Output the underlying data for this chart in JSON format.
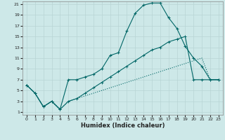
{
  "xlabel": "Humidex (Indice chaleur)",
  "bg_color": "#cde8e8",
  "grid_color": "#b8d4d4",
  "line_color": "#006666",
  "xlim": [
    -0.5,
    23.5
  ],
  "ylim": [
    0.5,
    21.5
  ],
  "xticks": [
    0,
    1,
    2,
    3,
    4,
    5,
    6,
    7,
    8,
    9,
    10,
    11,
    12,
    13,
    14,
    15,
    16,
    17,
    18,
    19,
    20,
    21,
    22,
    23
  ],
  "yticks": [
    1,
    3,
    5,
    7,
    9,
    11,
    13,
    15,
    17,
    19,
    21
  ],
  "line1_x": [
    0,
    1,
    2,
    3,
    4,
    5,
    6,
    7,
    8,
    9,
    10,
    11,
    12,
    13,
    14,
    15,
    16,
    17,
    18,
    19,
    20,
    21,
    22,
    23
  ],
  "line1_y": [
    6,
    4.5,
    2,
    3,
    1.5,
    7,
    7,
    7.5,
    8,
    9,
    11.5,
    12,
    16,
    19.3,
    20.8,
    21.2,
    21.2,
    18.5,
    16.5,
    13.2,
    11,
    9.5,
    7,
    7
  ],
  "line2_x": [
    0,
    1,
    2,
    3,
    4,
    5,
    6,
    7,
    8,
    9,
    10,
    11,
    12,
    13,
    14,
    15,
    16,
    17,
    18,
    19,
    20,
    21,
    22,
    23
  ],
  "line2_y": [
    6,
    4.5,
    2,
    3,
    1.5,
    3.0,
    3.5,
    4.5,
    5.5,
    6.5,
    7.5,
    8.5,
    9.5,
    10.5,
    11.5,
    12.5,
    13.0,
    14.0,
    14.5,
    15.0,
    7,
    7,
    7,
    7
  ],
  "line3_x": [
    0,
    1,
    2,
    3,
    4,
    5,
    6,
    7,
    8,
    9,
    10,
    11,
    12,
    13,
    14,
    15,
    16,
    17,
    18,
    19,
    20,
    21,
    22,
    23
  ],
  "line3_y": [
    6,
    4.5,
    2,
    3,
    1.5,
    3.0,
    3.5,
    4.0,
    4.5,
    5.0,
    5.5,
    6.0,
    6.5,
    7.0,
    7.5,
    8.0,
    8.5,
    9.0,
    9.5,
    10.0,
    10.5,
    11.0,
    7,
    7
  ]
}
